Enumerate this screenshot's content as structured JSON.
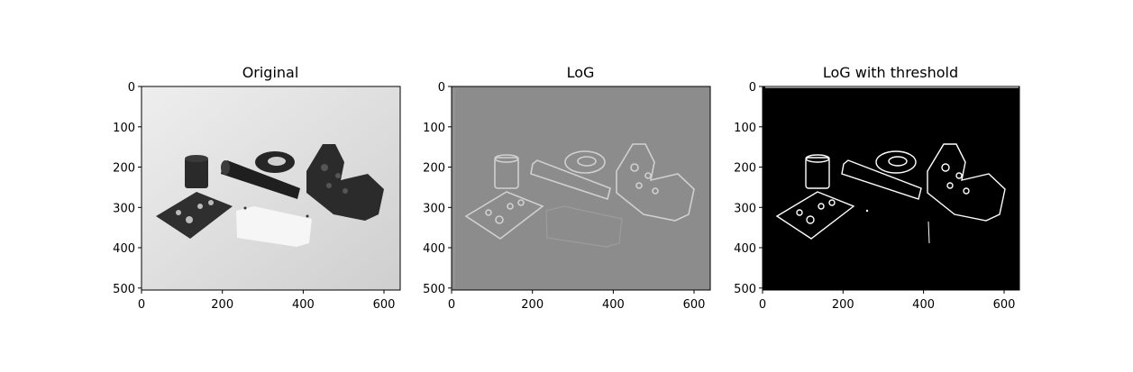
{
  "figure": {
    "panels": [
      {
        "title": "Original",
        "style": "original",
        "x_ticks": [
          "0",
          "200",
          "400",
          "600"
        ],
        "y_ticks": [
          "0",
          "100",
          "200",
          "300",
          "400",
          "500"
        ]
      },
      {
        "title": "LoG",
        "style": "log",
        "x_ticks": [
          "0",
          "200",
          "400",
          "600"
        ],
        "y_ticks": [
          "0",
          "100",
          "200",
          "300",
          "400",
          "500"
        ]
      },
      {
        "title": "LoG with threshold",
        "style": "threshold",
        "x_ticks": [
          "0",
          "200",
          "400",
          "600"
        ],
        "y_ticks": [
          "0",
          "100",
          "200",
          "300",
          "400",
          "500"
        ]
      }
    ],
    "colors": {
      "original_background": "#e4e4e4",
      "original_objects": "#2a2a2a",
      "original_white_block": "#f4f4f4",
      "log_background": "#8c8c8c",
      "log_edges": "#d2d2d2",
      "threshold_background": "#000000",
      "threshold_edges": "#ffffff"
    }
  }
}
